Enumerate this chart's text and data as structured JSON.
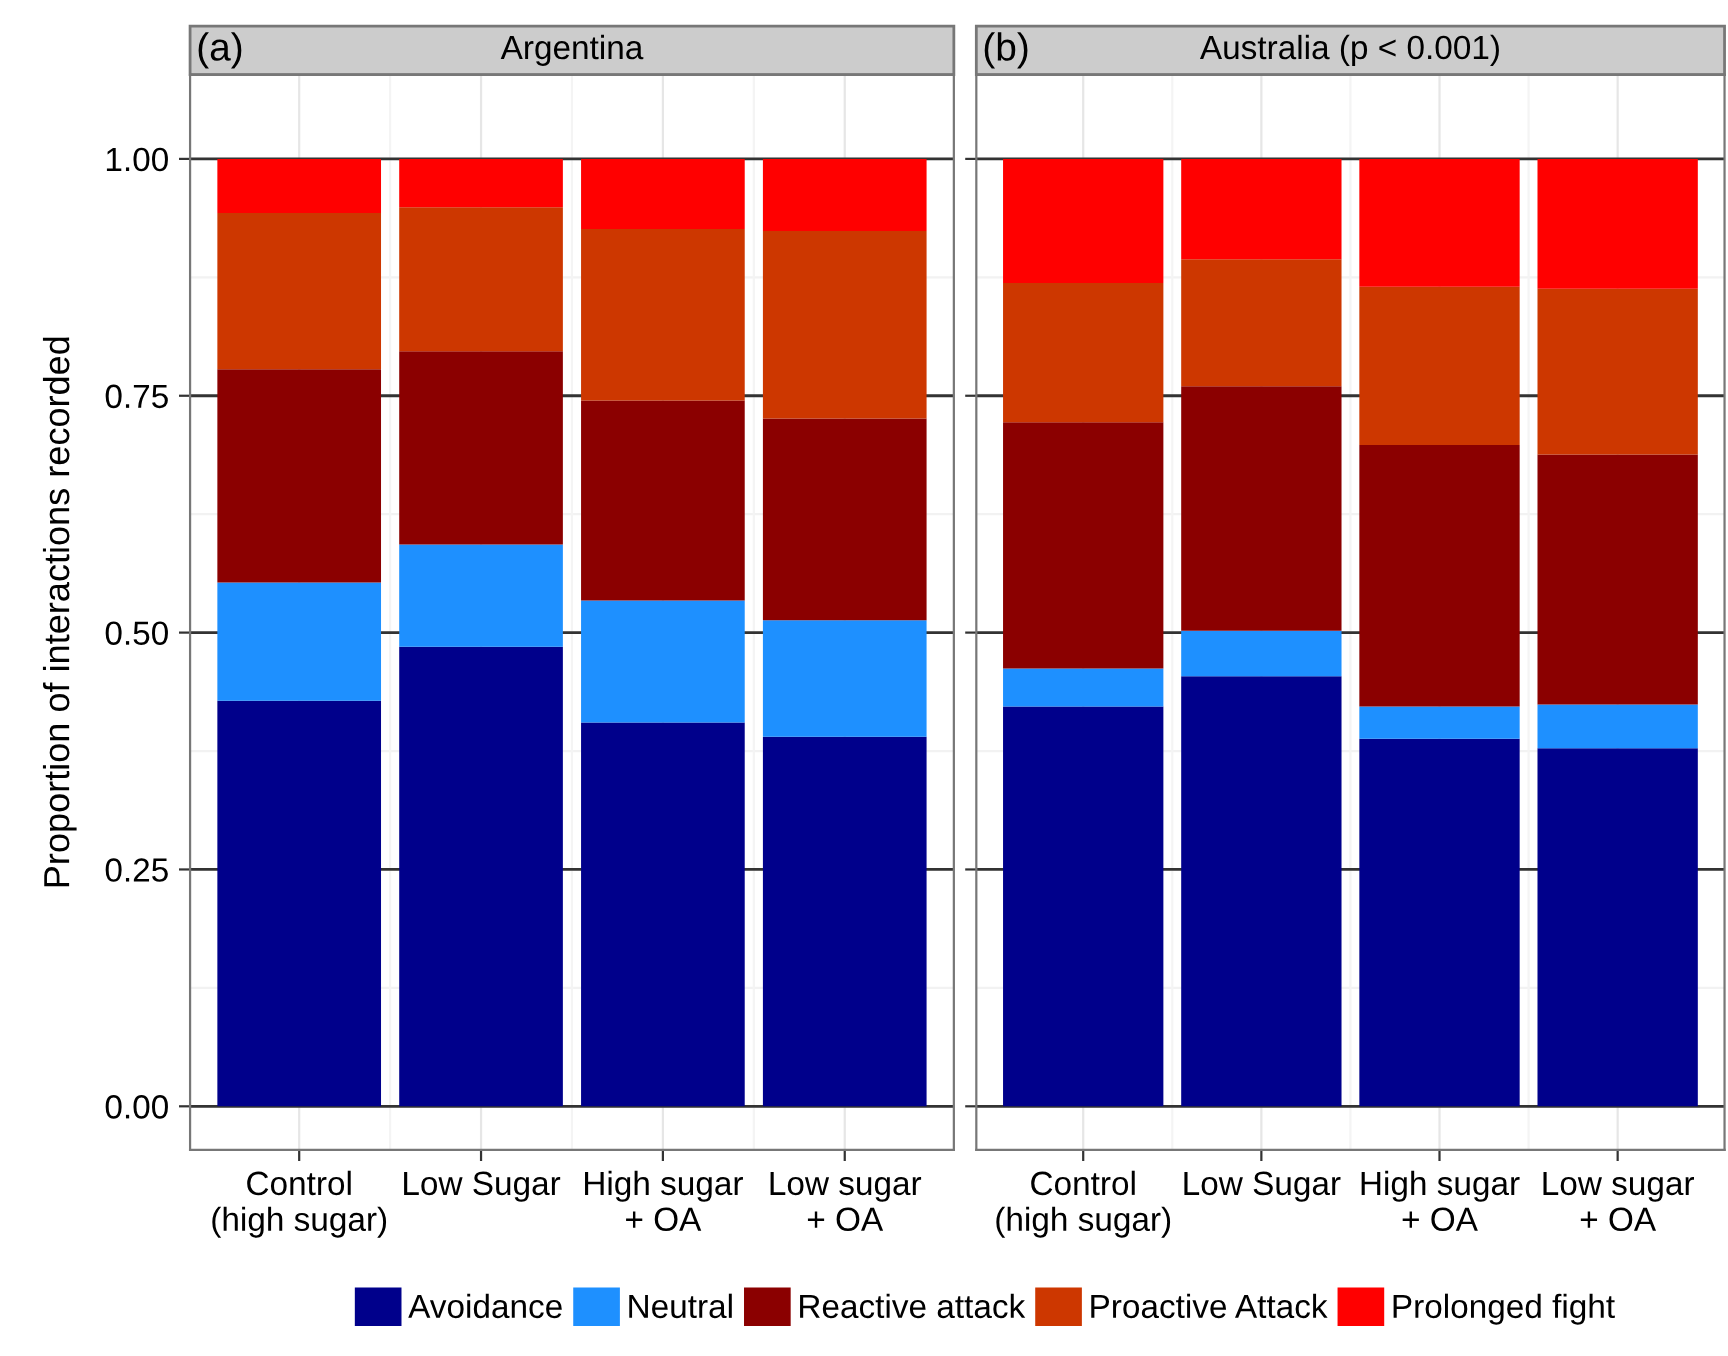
{
  "chart_data": [
    {
      "type": "bar",
      "stacked": true,
      "title": "Argentina",
      "annotations": [
        "(a)"
      ],
      "ylabel": "Proportion of interactions recorded",
      "categories": [
        "Control\n(high sugar)",
        "Low Sugar",
        "High sugar\n+ OA",
        "Low sugar\n+ OA"
      ],
      "series": [
        {
          "name": "Avoidance",
          "color": "#00008b",
          "values": [
            0.428,
            0.485,
            0.405,
            0.39
          ]
        },
        {
          "name": "Neutral",
          "color": "#1e90ff",
          "values": [
            0.125,
            0.108,
            0.129,
            0.123
          ]
        },
        {
          "name": "Reactive attack",
          "color": "#8b0000",
          "values": [
            0.225,
            0.204,
            0.211,
            0.213
          ]
        },
        {
          "name": "Proactive Attack",
          "color": "#cd3700",
          "values": [
            0.165,
            0.152,
            0.181,
            0.198
          ]
        },
        {
          "name": "Prolonged fight",
          "color": "#ff0000",
          "values": [
            0.057,
            0.051,
            0.074,
            0.076
          ]
        }
      ],
      "ylim": [
        -0.046,
        1.089
      ],
      "yticks": [
        {
          "value": 0,
          "label": "0.00"
        },
        {
          "value": 0.25,
          "label": "0.25"
        },
        {
          "value": 0.5,
          "label": "0.50"
        },
        {
          "value": 0.75,
          "label": "0.75"
        },
        {
          "value": 1,
          "label": "1.00"
        }
      ],
      "grid": true,
      "legend": "bottom"
    },
    {
      "type": "bar",
      "stacked": true,
      "title": "Australia (p < 0.001)",
      "annotations": [
        "(b)"
      ],
      "categories": [
        "Control\n(high sugar)",
        "Low Sugar",
        "High sugar\n+ OA",
        "Low sugar\n+ OA"
      ],
      "series": [
        {
          "color": "#00008b",
          "values": [
            0.422,
            0.454,
            0.388,
            0.378
          ]
        },
        {
          "color": "#1e90ff",
          "values": [
            0.04,
            0.048,
            0.034,
            0.046
          ]
        },
        {
          "color": "#8b0000",
          "values": [
            0.26,
            0.258,
            0.276,
            0.264
          ]
        },
        {
          "color": "#cd3700",
          "values": [
            0.147,
            0.134,
            0.167,
            0.175
          ]
        },
        {
          "color": "#ff0000",
          "values": [
            0.131,
            0.106,
            0.135,
            0.137
          ]
        }
      ],
      "ylim": [
        -0.046,
        1.089
      ],
      "yticks": [
        0,
        0.25,
        0.5,
        0.75,
        1
      ],
      "grid": true,
      "tick_labels": "x"
    }
  ]
}
